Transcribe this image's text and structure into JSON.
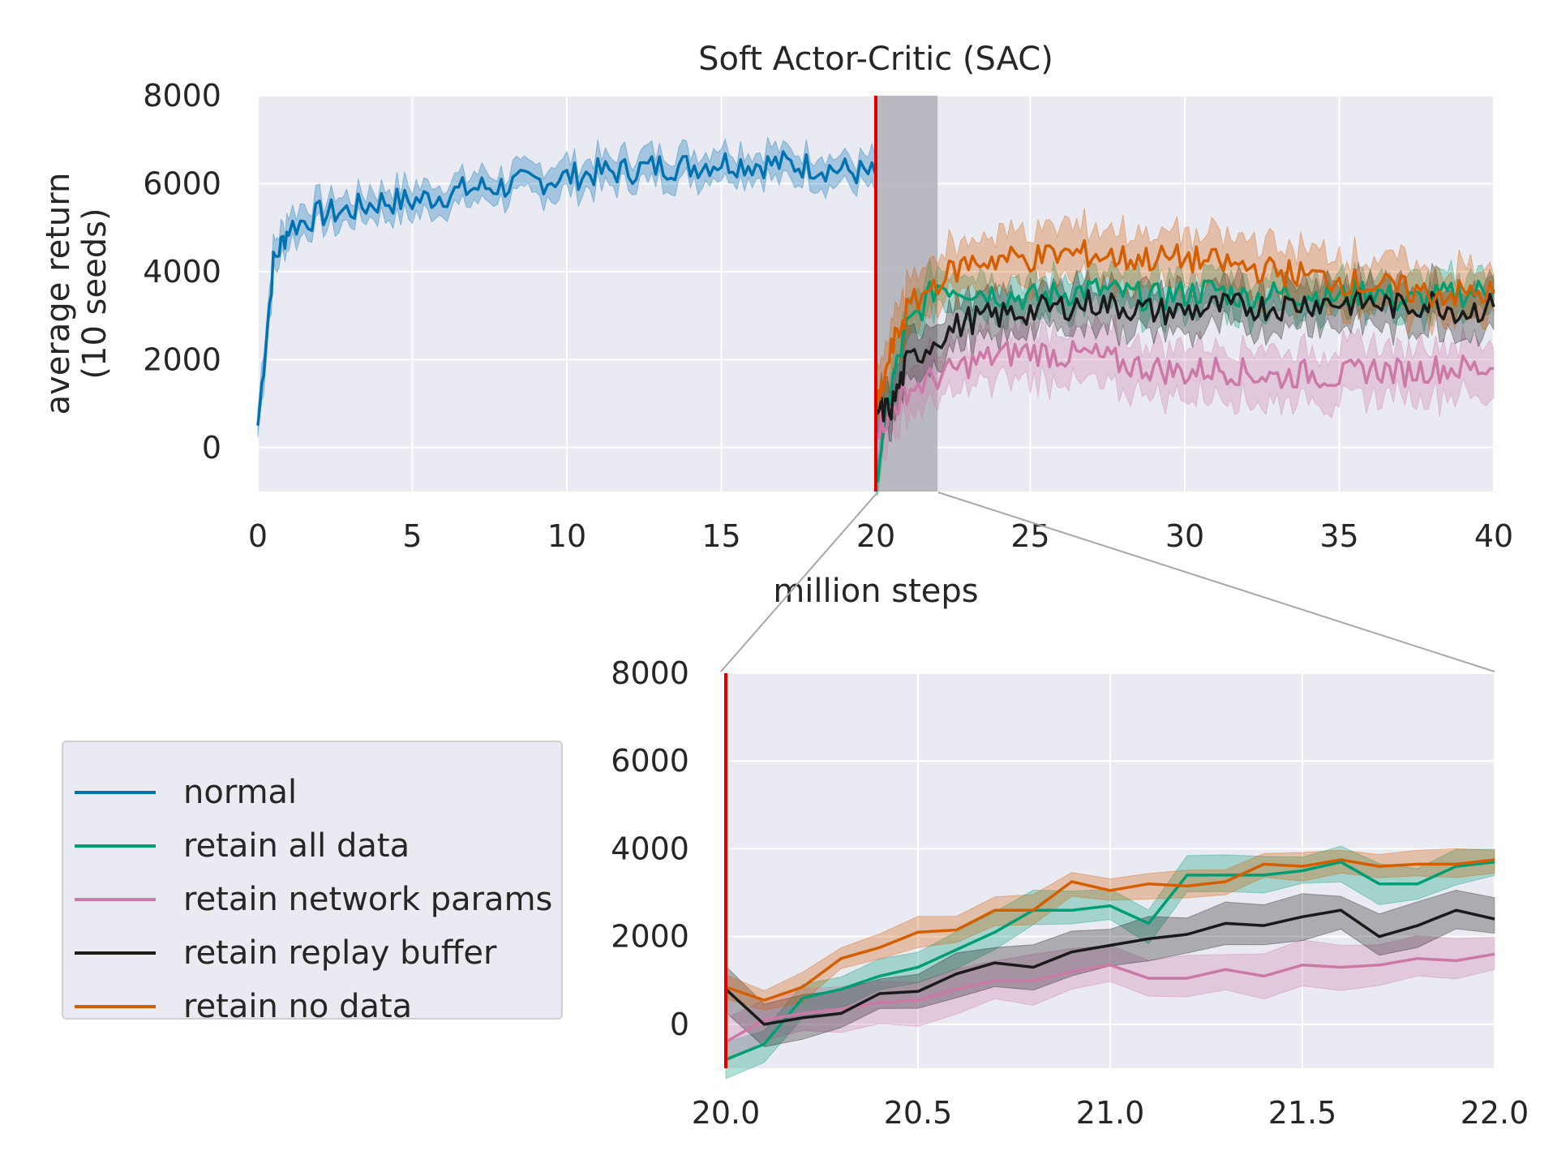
{
  "chart_data": [
    {
      "type": "line",
      "title": "Soft Actor-Critic (SAC)",
      "xlabel": "million steps",
      "ylabel": "average return\n(10 seeds)",
      "xlim": [
        0,
        40
      ],
      "ylim": [
        -1000,
        8000
      ],
      "xticks": [
        "0",
        "5",
        "10",
        "15",
        "20",
        "25",
        "30",
        "35",
        "40"
      ],
      "yticks": [
        "0",
        "2000",
        "4000",
        "6000",
        "8000"
      ],
      "grid": true,
      "vline_x": 20,
      "highlight_x_range": [
        20,
        22
      ],
      "series": [
        {
          "name": "normal",
          "x": [
            0,
            0.5,
            1,
            2,
            3,
            4,
            5,
            6,
            7,
            8,
            9,
            10,
            11,
            12,
            13,
            14,
            15,
            16,
            17,
            18,
            19,
            20
          ],
          "y": [
            500,
            4200,
            5000,
            5300,
            5400,
            5600,
            5600,
            5750,
            5900,
            5950,
            6050,
            6150,
            6250,
            6300,
            6400,
            6400,
            6500,
            6450,
            6450,
            6400,
            6300,
            6200
          ],
          "band": 400
        },
        {
          "name": "retain all data",
          "x": [
            20,
            20.5,
            21,
            22,
            23,
            24,
            25,
            26,
            27,
            28,
            29,
            30,
            31,
            32,
            33,
            34,
            35,
            36,
            37,
            38,
            39,
            40
          ],
          "y": [
            -700,
            1400,
            2700,
            3700,
            3600,
            3500,
            3400,
            3500,
            3600,
            3500,
            3400,
            3500,
            3600,
            3400,
            3500,
            3500,
            3400,
            3600,
            3300,
            3400,
            3500,
            3600
          ],
          "band": 500
        },
        {
          "name": "retain network params",
          "x": [
            20,
            20.5,
            21,
            22,
            23,
            24,
            25,
            26,
            27,
            28,
            29,
            30,
            31,
            32,
            33,
            34,
            35,
            36,
            37,
            38,
            39,
            40
          ],
          "y": [
            400,
            800,
            1300,
            1600,
            1900,
            2100,
            2200,
            2100,
            2100,
            1900,
            1800,
            1700,
            1800,
            1700,
            1600,
            1700,
            1600,
            1800,
            1700,
            1800,
            1800,
            1800
          ],
          "band": 700
        },
        {
          "name": "retain replay buffer",
          "x": [
            20,
            20.5,
            21,
            22,
            23,
            24,
            25,
            26,
            27,
            28,
            29,
            30,
            31,
            32,
            33,
            34,
            35,
            36,
            37,
            38,
            39,
            40
          ],
          "y": [
            800,
            900,
            1900,
            2500,
            2900,
            3000,
            3100,
            3200,
            3300,
            3200,
            3100,
            3100,
            3200,
            3200,
            3200,
            3300,
            3300,
            3300,
            3200,
            3300,
            3100,
            3200
          ],
          "band": 600
        },
        {
          "name": "retain no data",
          "x": [
            20,
            20.5,
            21,
            22,
            23,
            24,
            25,
            26,
            27,
            28,
            29,
            30,
            31,
            32,
            33,
            34,
            35,
            36,
            37,
            38,
            39,
            40
          ],
          "y": [
            800,
            2200,
            3100,
            3800,
            4200,
            4300,
            4300,
            4400,
            4400,
            4300,
            4300,
            4300,
            4200,
            4100,
            4000,
            3900,
            3800,
            3700,
            3600,
            3500,
            3500,
            3500
          ],
          "band": 700
        }
      ]
    },
    {
      "type": "line",
      "xlim": [
        20.0,
        22.0
      ],
      "ylim": [
        -1000,
        8000
      ],
      "xticks": [
        "20.0",
        "20.5",
        "21.0",
        "21.5",
        "22.0"
      ],
      "yticks": [
        "0",
        "2000",
        "4000",
        "6000",
        "8000"
      ],
      "grid": true,
      "vline_x": 20.0,
      "series": [
        {
          "name": "retain all data",
          "x": [
            20.0,
            20.1,
            20.2,
            20.3,
            20.4,
            20.5,
            20.6,
            20.7,
            20.8,
            20.9,
            21.0,
            21.1,
            21.2,
            21.3,
            21.4,
            21.5,
            21.6,
            21.7,
            21.8,
            21.9,
            22.0
          ],
          "y": [
            -800,
            -450,
            600,
            800,
            1100,
            1300,
            1700,
            2100,
            2600,
            2600,
            2700,
            2300,
            3400,
            3400,
            3400,
            3500,
            3700,
            3200,
            3200,
            3600,
            3700
          ],
          "band": 450
        },
        {
          "name": "retain network params",
          "x": [
            20.0,
            20.1,
            20.2,
            20.3,
            20.4,
            20.5,
            20.6,
            20.7,
            20.8,
            20.9,
            21.0,
            21.1,
            21.2,
            21.3,
            21.4,
            21.5,
            21.6,
            21.7,
            21.8,
            21.9,
            22.0
          ],
          "y": [
            -400,
            100,
            250,
            350,
            500,
            550,
            800,
            1000,
            1000,
            1200,
            1350,
            1050,
            1050,
            1250,
            1100,
            1350,
            1300,
            1350,
            1500,
            1450,
            1600
          ],
          "band": 550
        },
        {
          "name": "retain replay buffer",
          "x": [
            20.0,
            20.1,
            20.2,
            20.3,
            20.4,
            20.5,
            20.6,
            20.7,
            20.8,
            20.9,
            21.0,
            21.1,
            21.2,
            21.3,
            21.4,
            21.5,
            21.6,
            21.7,
            21.8,
            21.9,
            22.0
          ],
          "y": [
            800,
            0,
            150,
            250,
            700,
            750,
            1150,
            1400,
            1300,
            1650,
            1800,
            1950,
            2050,
            2300,
            2250,
            2450,
            2600,
            2000,
            2250,
            2600,
            2400
          ],
          "band": 500
        },
        {
          "name": "retain no data",
          "x": [
            20.0,
            20.1,
            20.2,
            20.3,
            20.4,
            20.5,
            20.6,
            20.7,
            20.8,
            20.9,
            21.0,
            21.1,
            21.2,
            21.3,
            21.4,
            21.5,
            21.6,
            21.7,
            21.8,
            21.9,
            22.0
          ],
          "y": [
            850,
            550,
            850,
            1500,
            1750,
            2100,
            2150,
            2600,
            2600,
            3250,
            3050,
            3200,
            3150,
            3250,
            3650,
            3600,
            3750,
            3600,
            3650,
            3650,
            3750
          ],
          "band": 350
        }
      ]
    }
  ],
  "legend": [
    {
      "label": "normal",
      "color": "#0072b2"
    },
    {
      "label": "retain all data",
      "color": "#009e73"
    },
    {
      "label": "retain network params",
      "color": "#cc79a7"
    },
    {
      "label": "retain replay buffer",
      "color": "#1a1a1a"
    },
    {
      "label": "retain no data",
      "color": "#d55e00"
    }
  ],
  "colors": {
    "normal": "#0072b2",
    "retain all data": "#009e73",
    "retain network params": "#cc79a7",
    "retain replay buffer": "#1a1a1a",
    "retain no data": "#d55e00",
    "vline": "#e00000",
    "highlight": "#b4b4bb",
    "axes_bg": "#eaeaf2"
  }
}
